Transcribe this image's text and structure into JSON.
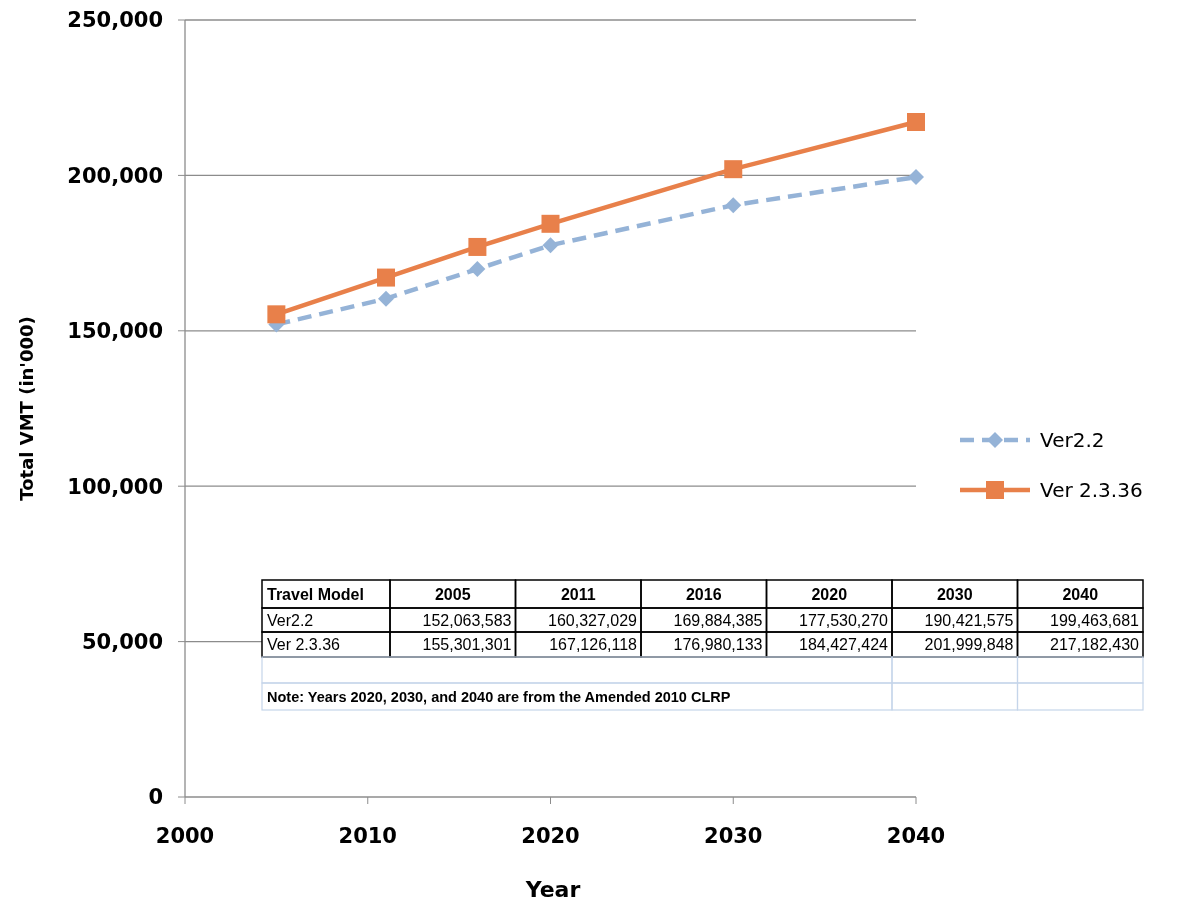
{
  "chart_data": {
    "type": "line",
    "xlabel": "Year",
    "ylabel": "Total VMT (in'000)",
    "x": [
      2005,
      2011,
      2016,
      2020,
      2030,
      2040
    ],
    "xlim": [
      2000,
      2040
    ],
    "xticks": [
      2000,
      2010,
      2020,
      2030,
      2040
    ],
    "ylim": [
      0,
      250000
    ],
    "yticks": [
      {
        "value": 0,
        "label": "0"
      },
      {
        "value": 50000,
        "label": "50,000"
      },
      {
        "value": 100000,
        "label": "100,000"
      },
      {
        "value": 150000,
        "label": "150,000"
      },
      {
        "value": 200000,
        "label": "200,000"
      },
      {
        "value": 250000,
        "label": "250,000"
      }
    ],
    "grid": "y",
    "legend": "right",
    "series": [
      {
        "name": "Ver2.2",
        "color": "#95b3d7",
        "marker": "diamond",
        "line_style": "dashed",
        "values": [
          152064,
          160327,
          169884,
          177530,
          190422,
          199464
        ]
      },
      {
        "name": "Ver 2.3.36",
        "color": "#e8804a",
        "marker": "square",
        "line_style": "solid",
        "values": [
          155301,
          167126,
          176980,
          184427,
          202000,
          217182
        ]
      }
    ],
    "annotations": [
      "Travel Model",
      "2005",
      "2011",
      "2016",
      "2020",
      "2030",
      "2040",
      "152,063,583",
      "160,327,029",
      "169,884,385",
      "177,530,270",
      "190,421,575",
      "199,463,681",
      "155,301,301",
      "167,126,118",
      "176,980,133",
      "184,427,424",
      "201,999,848",
      "217,182,430",
      "Note: Years 2020, 2030, and 2040 are from the Amended 2010 CLRP"
    ]
  }
}
